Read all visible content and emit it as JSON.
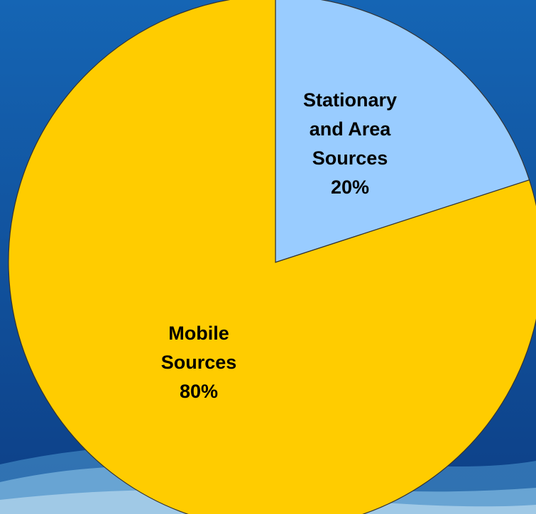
{
  "chart_data": {
    "type": "pie",
    "slices": [
      {
        "lines": [
          "Stationary",
          "and Area",
          "Sources",
          "20%"
        ],
        "value": 20,
        "color": "#99ccff"
      },
      {
        "lines": [
          "Mobile",
          "Sources",
          "80%"
        ],
        "value": 80,
        "color": "#ffcc00"
      }
    ],
    "start_angle_deg": 0,
    "direction": "clockwise",
    "title": "",
    "legend": "none"
  },
  "theme": {
    "background_top": "#1565b4",
    "background_bottom": "#0d3f86",
    "wave_light": "#8ec6ea",
    "wave_mid": "#4f9bd3",
    "slice_border": "#333333"
  }
}
